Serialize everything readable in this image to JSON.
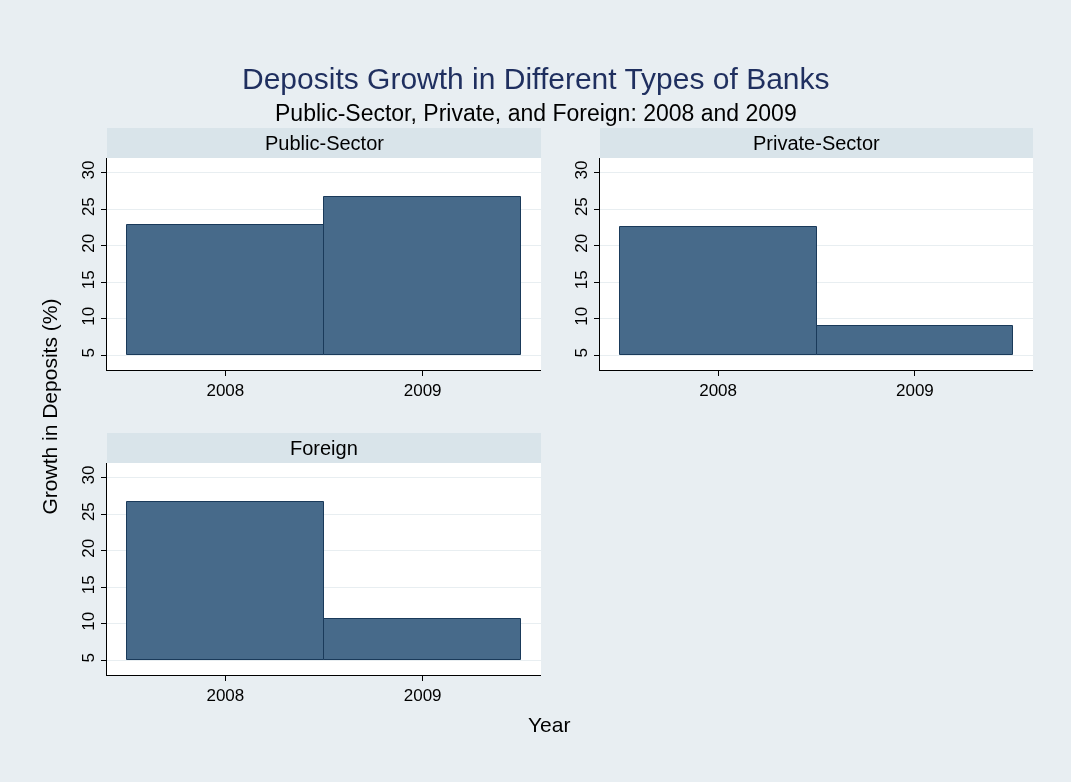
{
  "chart_data": [
    {
      "type": "bar",
      "title": "Public-Sector",
      "annotations": [
        "Deposits Growth in Different Types of Banks",
        "Public-Sector, Private, and Foreign: 2008 and 2009"
      ],
      "ylabel": "Growth in Deposits (%)",
      "categories": [
        "2008",
        "2009"
      ],
      "base": [
        5,
        5
      ],
      "values": [
        17.9,
        21.7
      ],
      "color": "#476a8a",
      "ylim": [
        3,
        32
      ],
      "yticks": [
        5,
        10,
        15,
        20,
        25,
        30
      ],
      "grid": "y"
    },
    {
      "type": "bar",
      "title": "Private-Sector",
      "categories": [
        "2008",
        "2009"
      ],
      "base": [
        5,
        5
      ],
      "values": [
        17.6,
        4.0
      ],
      "color": "#476a8a",
      "ylim": [
        3,
        32
      ],
      "yticks": [
        5,
        10,
        15,
        20,
        25,
        30
      ],
      "grid": "y"
    },
    {
      "type": "bar",
      "title": "Foreign",
      "xlabel": "Year",
      "categories": [
        "2008",
        "2009"
      ],
      "base": [
        5,
        5
      ],
      "values": [
        21.6,
        5.7
      ],
      "color": "#476a8a",
      "ylim": [
        3,
        32
      ],
      "yticks": [
        5,
        10,
        15,
        20,
        25,
        30
      ],
      "grid": "y"
    }
  ]
}
